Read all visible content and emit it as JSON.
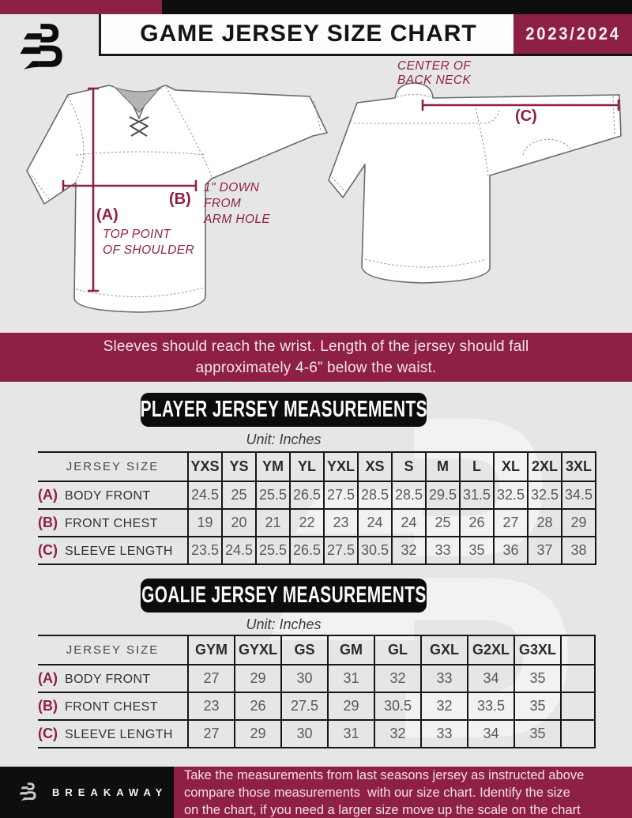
{
  "header": {
    "title": "GAME JERSEY SIZE CHART",
    "season": "2023/2024",
    "logo_icon": "breakaway-b-logo"
  },
  "diagram": {
    "front": {
      "label_a": "(A)",
      "a_note_line1": "TOP POINT",
      "a_note_line2": "OF SHOULDER",
      "label_b": "(B)",
      "b_note_line1": "1\" DOWN",
      "b_note_line2": "FROM",
      "b_note_line3": "ARM HOLE"
    },
    "back": {
      "label_c": "(C)",
      "neck_note_line1": "CENTER OF",
      "neck_note_line2": "BACK NECK"
    }
  },
  "banner": {
    "line1": "Sleeves should reach the wrist. Length of the jersey should fall",
    "line2": "approximately 4-6” below the waist."
  },
  "player_section": {
    "title": "PLAYER JERSEY MEASUREMENTS",
    "unit": "Unit: Inches",
    "table": {
      "corner_label": "JERSEY SIZE",
      "columns": [
        "YXS",
        "YS",
        "YM",
        "YL",
        "YXL",
        "XS",
        "S",
        "M",
        "L",
        "XL",
        "2XL",
        "3XL"
      ],
      "rows": [
        {
          "key": "(A)",
          "label": "BODY FRONT",
          "values": [
            "24.5",
            "25",
            "25.5",
            "26.5",
            "27.5",
            "28.5",
            "28.5",
            "29.5",
            "31.5",
            "32.5",
            "32.5",
            "34.5"
          ]
        },
        {
          "key": "(B)",
          "label": "FRONT CHEST",
          "values": [
            "19",
            "20",
            "21",
            "22",
            "23",
            "24",
            "24",
            "25",
            "26",
            "27",
            "28",
            "29"
          ]
        },
        {
          "key": "(C)",
          "label": "SLEEVE LENGTH",
          "values": [
            "23.5",
            "24.5",
            "25.5",
            "26.5",
            "27.5",
            "30.5",
            "32",
            "33",
            "35",
            "36",
            "37",
            "38"
          ]
        }
      ]
    }
  },
  "goalie_section": {
    "title": "GOALIE JERSEY MEASUREMENTS",
    "unit": "Unit: Inches",
    "table": {
      "corner_label": "JERSEY SIZE",
      "columns": [
        "GYM",
        "GYXL",
        "GS",
        "GM",
        "GL",
        "GXL",
        "G2XL",
        "G3XL",
        ""
      ],
      "rows": [
        {
          "key": "(A)",
          "label": "BODY FRONT",
          "values": [
            "27",
            "29",
            "30",
            "31",
            "32",
            "33",
            "34",
            "35",
            ""
          ]
        },
        {
          "key": "(B)",
          "label": "FRONT CHEST",
          "values": [
            "23",
            "26",
            "27.5",
            "29",
            "30.5",
            "32",
            "33.5",
            "35",
            ""
          ]
        },
        {
          "key": "(C)",
          "label": "SLEEVE LENGTH",
          "values": [
            "27",
            "29",
            "30",
            "31",
            "32",
            "33",
            "34",
            "35",
            ""
          ]
        }
      ]
    }
  },
  "footer": {
    "brand": "BREAKAWAY",
    "logo_icon": "breakaway-b-logo",
    "note": "Take the measurements from last seasons jersey as instructed above\ncompare those measurements  with our size chart. Identify the size\non the chart, if you need a larger size move up the scale on the chart"
  },
  "colors": {
    "maroon": "#8e2143",
    "black": "#0e0e0e",
    "background": "#e7e6e7",
    "table_line": "#161616",
    "value_text": "#58585a"
  }
}
